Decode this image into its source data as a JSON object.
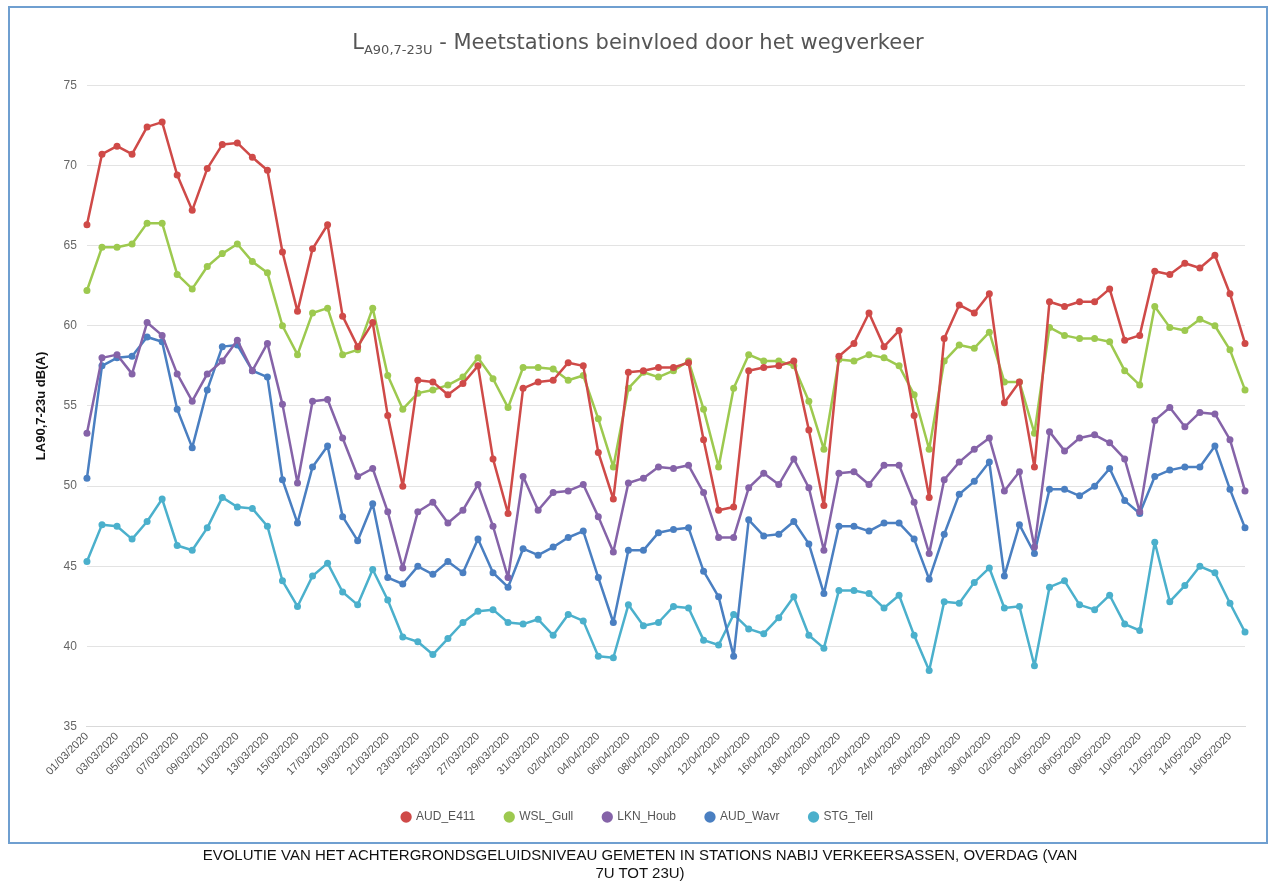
{
  "chart_data": {
    "type": "line",
    "title": "L$_{A90,7-23U}$ - Meetstations beinvloed door het wegverkeer",
    "ylabel": "LA90,7-23u dB(A)",
    "annotations": [
      "EVOLUTIE VAN HET ACHTERGRONDSGELUIDSNIVEAU GEMETEN IN STATIONS NABIJ VERKEERSASSEN, OVERDAG (VAN 7U TOT 23U)"
    ],
    "categories": [
      "01/03/2020",
      null,
      "03/03/2020",
      null,
      "05/03/2020",
      null,
      "07/03/2020",
      null,
      "09/03/2020",
      null,
      "11/03/2020",
      null,
      "13/03/2020",
      null,
      "15/03/2020",
      null,
      "17/03/2020",
      null,
      "19/03/2020",
      null,
      "21/03/2020",
      null,
      "23/03/2020",
      null,
      "25/03/2020",
      null,
      "27/03/2020",
      null,
      "29/03/2020",
      null,
      "31/03/2020",
      null,
      "02/04/2020",
      null,
      "04/04/2020",
      null,
      "06/04/2020",
      null,
      "08/04/2020",
      null,
      "10/04/2020",
      null,
      "12/04/2020",
      null,
      "14/04/2020",
      null,
      "16/04/2020",
      null,
      "18/04/2020",
      null,
      "20/04/2020",
      null,
      "22/04/2020",
      null,
      "24/04/2020",
      null,
      "26/04/2020",
      null,
      "28/04/2020",
      null,
      "30/04/2020",
      null,
      "02/05/2020",
      null,
      "04/05/2020",
      null,
      "06/05/2020",
      null,
      "08/05/2020",
      null,
      "10/05/2020",
      null,
      "12/05/2020",
      null,
      "14/05/2020",
      null,
      "16/05/2020",
      null
    ],
    "series": [
      {
        "name": "AUD_E411",
        "color": "#cf4a48",
        "values": [
          66.3,
          70.7,
          71.2,
          70.7,
          72.4,
          72.7,
          69.4,
          67.2,
          69.8,
          71.3,
          71.4,
          70.5,
          69.7,
          64.6,
          60.9,
          64.8,
          66.3,
          60.6,
          58.7,
          60.2,
          54.4,
          50.0,
          56.6,
          56.5,
          55.7,
          56.4,
          57.5,
          51.7,
          48.3,
          56.1,
          56.5,
          56.6,
          57.7,
          57.5,
          52.1,
          49.2,
          57.1,
          57.2,
          57.4,
          57.4,
          57.7,
          52.9,
          48.5,
          48.7,
          57.2,
          57.4,
          57.5,
          57.8,
          53.5,
          48.8,
          58.1,
          58.9,
          60.8,
          58.7,
          59.7,
          54.4,
          49.3,
          59.2,
          61.3,
          60.8,
          62.0,
          55.2,
          56.5,
          51.2,
          61.5,
          61.2,
          61.5,
          61.5,
          62.3,
          59.1,
          59.4,
          63.4,
          63.2,
          63.9,
          63.6,
          64.4,
          62.0,
          58.9
        ]
      },
      {
        "name": "WSL_Gull",
        "color": "#9dc94f",
        "values": [
          62.2,
          64.9,
          64.9,
          65.1,
          66.4,
          66.4,
          63.2,
          62.3,
          63.7,
          64.5,
          65.1,
          64.0,
          63.3,
          60.0,
          58.2,
          60.8,
          61.1,
          58.2,
          58.5,
          61.1,
          56.9,
          54.8,
          55.8,
          56.0,
          56.3,
          56.8,
          58.0,
          56.7,
          54.9,
          57.4,
          57.4,
          57.3,
          56.6,
          56.9,
          54.2,
          51.2,
          56.1,
          57.1,
          56.8,
          57.2,
          57.8,
          54.8,
          51.2,
          56.1,
          58.2,
          57.8,
          57.8,
          57.5,
          55.3,
          52.3,
          57.9,
          57.8,
          58.2,
          58.0,
          57.5,
          55.7,
          52.3,
          57.8,
          58.8,
          58.6,
          59.6,
          56.5,
          56.5,
          53.3,
          59.9,
          59.4,
          59.2,
          59.2,
          59.0,
          57.2,
          56.3,
          61.2,
          59.9,
          59.7,
          60.4,
          60.0,
          58.5,
          56.0
        ]
      },
      {
        "name": "LKN_Houb",
        "color": "#8563a8",
        "values": [
          53.3,
          58.0,
          58.2,
          57.0,
          60.2,
          59.4,
          57.0,
          55.3,
          57.0,
          57.8,
          59.1,
          57.2,
          58.9,
          55.1,
          50.2,
          55.3,
          55.4,
          53.0,
          50.6,
          51.1,
          48.4,
          44.9,
          48.4,
          49.0,
          47.7,
          48.5,
          50.1,
          47.5,
          44.3,
          50.6,
          48.5,
          49.6,
          49.7,
          50.1,
          48.1,
          45.9,
          50.2,
          50.5,
          51.2,
          51.1,
          51.3,
          49.6,
          46.8,
          46.8,
          49.9,
          50.8,
          50.1,
          51.7,
          49.9,
          46.0,
          50.8,
          50.9,
          50.1,
          51.3,
          51.3,
          49.0,
          45.8,
          50.4,
          51.5,
          52.3,
          53.0,
          49.7,
          50.9,
          46.2,
          53.4,
          52.2,
          53.0,
          53.2,
          52.7,
          51.7,
          48.4,
          54.1,
          54.9,
          53.7,
          54.6,
          54.5,
          52.9,
          49.7
        ]
      },
      {
        "name": "AUD_Wavr",
        "color": "#4a7fc1",
        "values": [
          50.5,
          57.5,
          58.0,
          58.1,
          59.3,
          59.0,
          54.8,
          52.4,
          56.0,
          58.7,
          58.8,
          57.2,
          56.8,
          50.4,
          47.7,
          51.2,
          52.5,
          48.1,
          46.6,
          48.9,
          44.3,
          43.9,
          45.0,
          44.5,
          45.3,
          44.6,
          46.7,
          44.6,
          43.7,
          46.1,
          45.7,
          46.2,
          46.8,
          47.2,
          44.3,
          41.5,
          46.0,
          46.0,
          47.1,
          47.3,
          47.4,
          44.7,
          43.1,
          39.4,
          47.9,
          46.9,
          47.0,
          47.8,
          46.4,
          43.3,
          47.5,
          47.5,
          47.2,
          47.7,
          47.7,
          46.7,
          44.2,
          47.0,
          49.5,
          50.3,
          51.5,
          44.4,
          47.6,
          45.8,
          49.8,
          49.8,
          49.4,
          50.0,
          51.1,
          49.1,
          48.3,
          50.6,
          51.0,
          51.2,
          51.2,
          52.5,
          49.8,
          47.4
        ]
      },
      {
        "name": "STG_Tell",
        "color": "#4bb0cc",
        "values": [
          45.3,
          47.6,
          47.5,
          46.7,
          47.8,
          49.2,
          46.3,
          46.0,
          47.4,
          49.3,
          48.7,
          48.6,
          47.5,
          44.1,
          42.5,
          44.4,
          45.2,
          43.4,
          42.6,
          44.8,
          42.9,
          40.6,
          40.3,
          39.5,
          40.5,
          41.5,
          42.2,
          42.3,
          41.5,
          41.4,
          41.7,
          40.7,
          42.0,
          41.6,
          39.4,
          39.3,
          42.6,
          41.3,
          41.5,
          42.5,
          42.4,
          40.4,
          40.1,
          42.0,
          41.1,
          40.8,
          41.8,
          43.1,
          40.7,
          39.9,
          43.5,
          43.5,
          43.3,
          42.4,
          43.2,
          40.7,
          38.5,
          42.8,
          42.7,
          44.0,
          44.9,
          42.4,
          42.5,
          38.8,
          43.7,
          44.1,
          42.6,
          42.3,
          43.2,
          41.4,
          41.0,
          46.5,
          42.8,
          43.8,
          45.0,
          44.6,
          42.7,
          40.9
        ]
      }
    ],
    "ylim": [
      35,
      75
    ],
    "yticks": [
      35,
      40,
      45,
      50,
      55,
      60,
      65,
      70,
      75
    ],
    "grid": "y",
    "legend": "bottom",
    "marker": "circle",
    "line_style": "solid"
  }
}
